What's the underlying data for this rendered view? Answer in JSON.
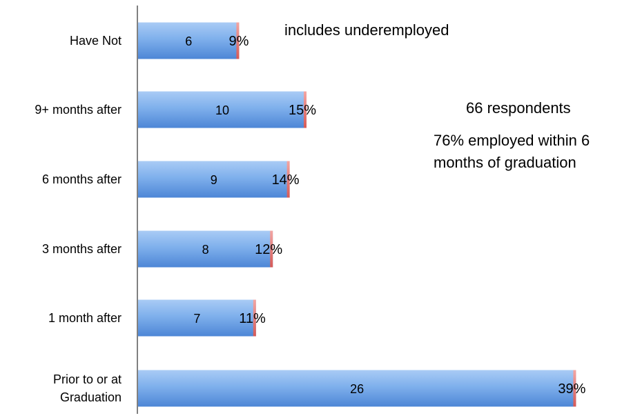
{
  "chart_data": {
    "type": "bar",
    "orientation": "horizontal",
    "categories": [
      "Have Not",
      "9+ months after",
      "6 months after",
      "3 months after",
      "1 month after",
      [
        "Prior to or at",
        "Graduation"
      ]
    ],
    "series": [
      {
        "values": [
          6,
          10,
          9,
          8,
          7,
          26
        ],
        "color": "#6aa1e6"
      },
      {
        "values": [
          9,
          15,
          14,
          12,
          11,
          39
        ],
        "color": "#e87b78"
      }
    ],
    "count_labels": [
      "6",
      "10",
      "9",
      "8",
      "7",
      "26"
    ],
    "percent_labels": [
      "9%",
      "15%",
      "14%",
      "12%",
      "11%",
      "39%"
    ],
    "annotations": {
      "underemployed": "includes underemployed",
      "respondents": "66 respondents",
      "employed": "76% employed within 6 months of graduation"
    },
    "axis_color": "#808080",
    "grid": false,
    "legend": "none"
  }
}
